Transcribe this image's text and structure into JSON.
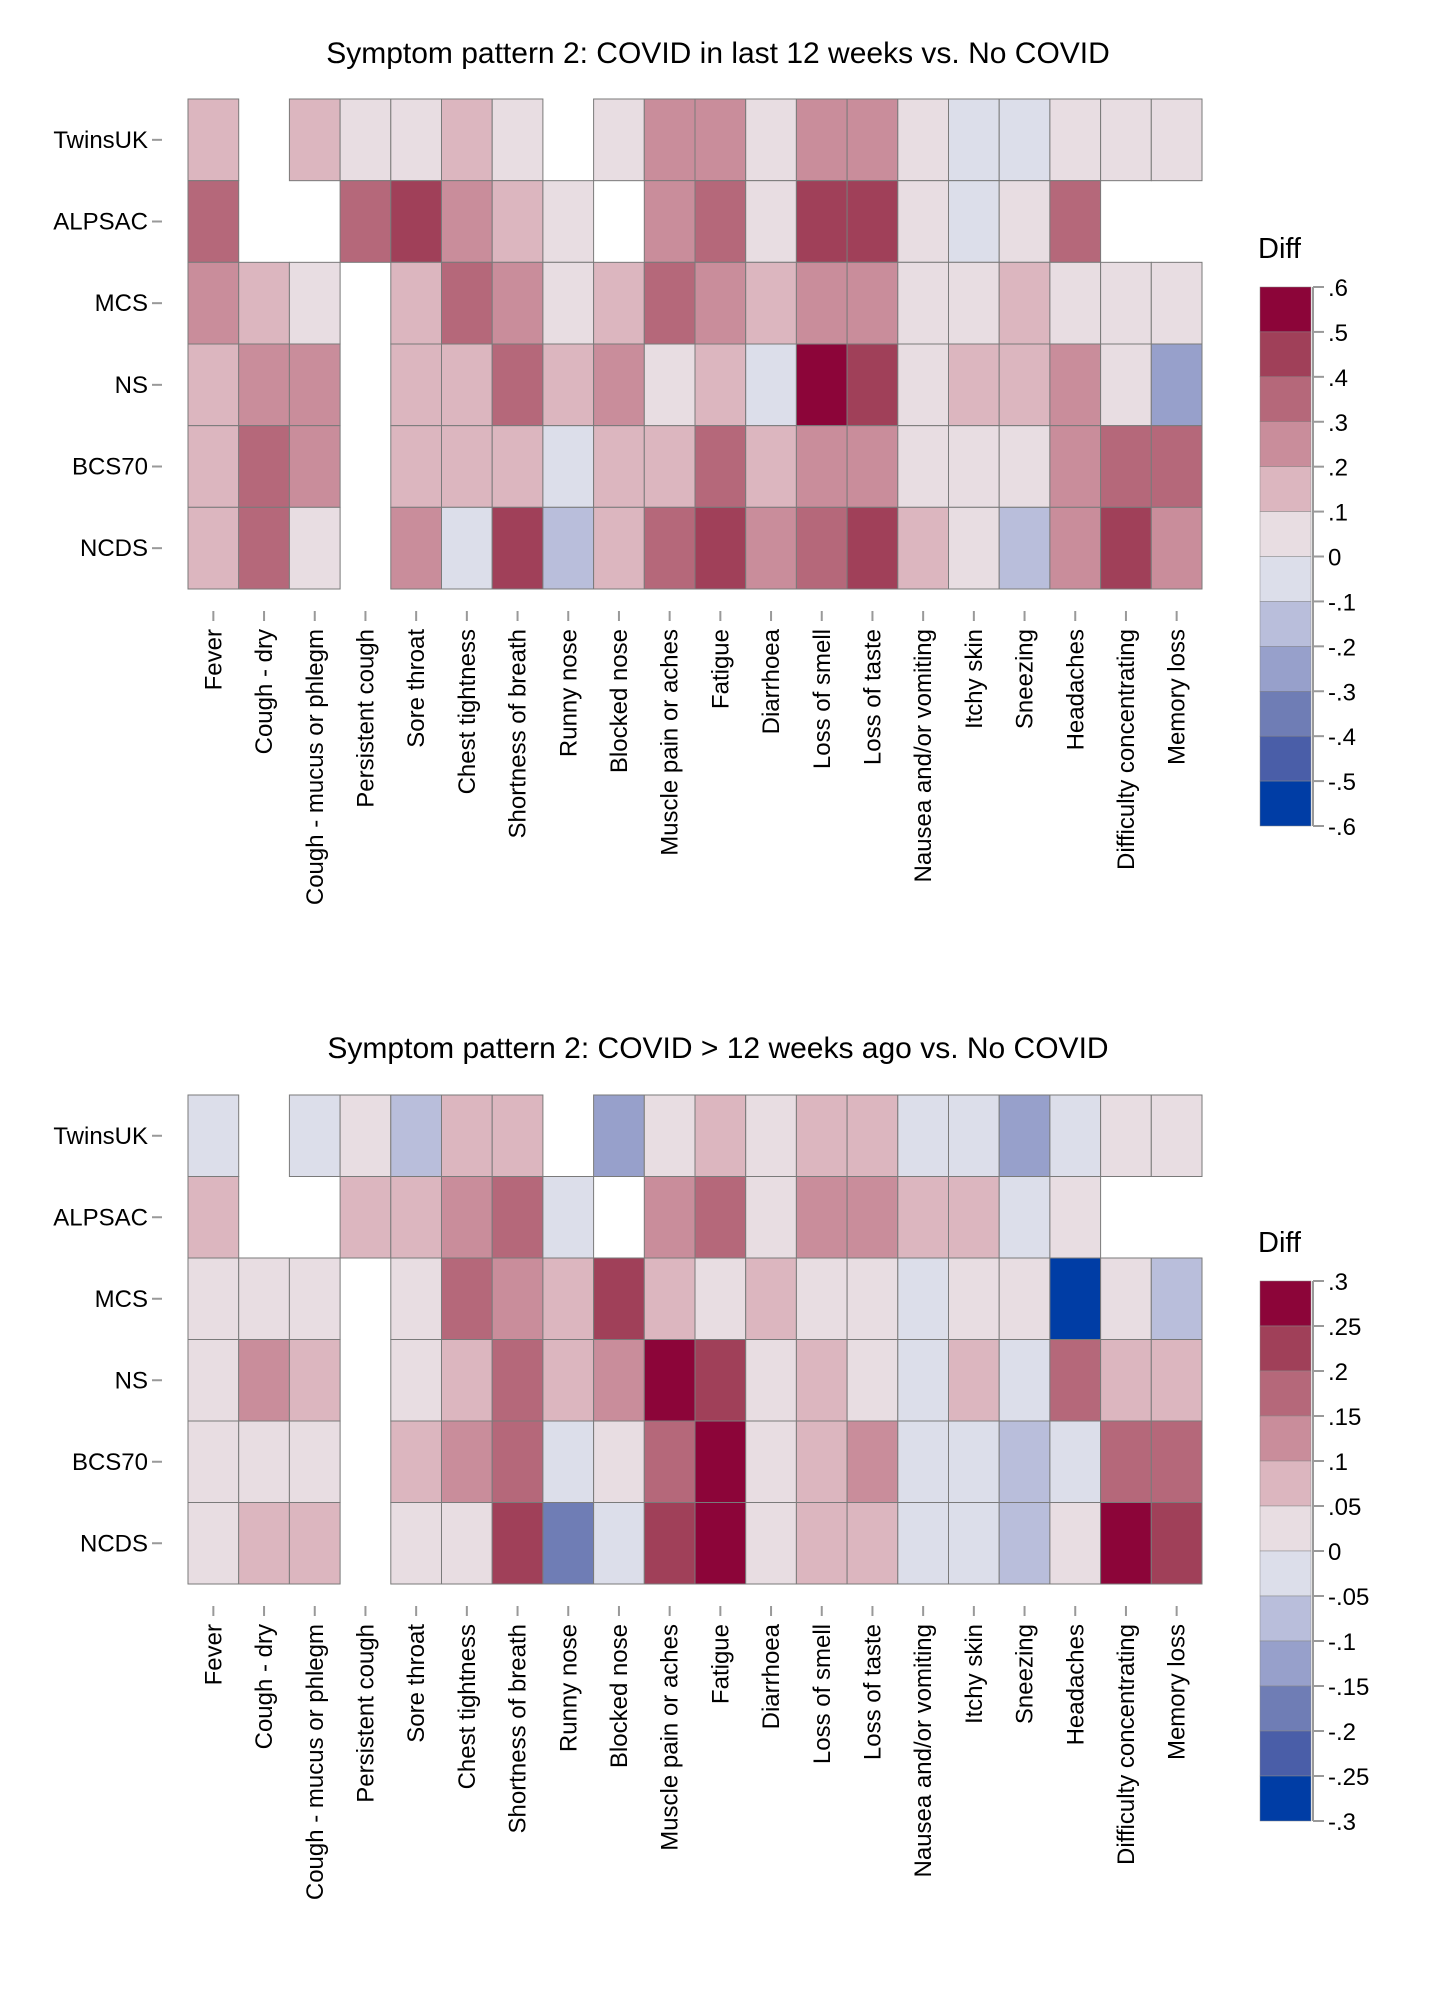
{
  "colors": [
    "#003DA5",
    "#4A5EA8",
    "#6F7DB5",
    "#97A0CB",
    "#B9BEDB",
    "#DCDEEA",
    "#E8DDE2",
    "#DCB6BF",
    "#C98D9B",
    "#B5687A",
    "#A04059",
    "#8C0539"
  ],
  "chart_data": [
    {
      "type": "heatmap",
      "title": "Symptom pattern 2: COVID in last 12 weeks vs. No COVID",
      "legend_title": "Diff",
      "legend_placement": "right",
      "scale_range": [
        -0.6,
        0.6
      ],
      "scale_step": 0.1,
      "legend_ticks": [
        ".6",
        ".5",
        ".4",
        ".3",
        ".2",
        ".1",
        "0",
        "-.1",
        "-.2",
        "-.3",
        "-.4",
        "-.5",
        "-.6"
      ],
      "rows": [
        "TwinsUK",
        "ALPSAC",
        "MCS",
        "NS",
        "BCS70",
        "NCDS"
      ],
      "columns": [
        "Fever",
        "Cough - dry",
        "Cough - mucus or phlegm",
        "Persistent cough",
        "Sore throat",
        "Chest tightness",
        "Shortness of breath",
        "Runny nose",
        "Blocked nose",
        "Muscle pain or aches",
        "Fatigue",
        "Diarrhoea",
        "Loss of smell",
        "Loss of taste",
        "Nausea and/or vomiting",
        "Itchy skin",
        "Sneezing",
        "Headaches",
        "Difficulty concentrating",
        "Memory loss"
      ],
      "values": [
        [
          0.15,
          null,
          0.15,
          0.05,
          0.05,
          0.15,
          0.05,
          null,
          0.05,
          0.25,
          0.25,
          0.05,
          0.25,
          0.25,
          0.05,
          -0.05,
          -0.05,
          0.05,
          0.05,
          0.05
        ],
        [
          0.35,
          null,
          null,
          0.35,
          0.45,
          0.25,
          0.15,
          0.05,
          null,
          0.25,
          0.35,
          0.05,
          0.45,
          0.45,
          0.05,
          -0.05,
          0.05,
          0.35,
          null,
          null
        ],
        [
          0.25,
          0.15,
          0.05,
          null,
          0.15,
          0.35,
          0.25,
          0.05,
          0.15,
          0.35,
          0.25,
          0.15,
          0.25,
          0.25,
          0.05,
          0.05,
          0.15,
          0.05,
          0.05,
          0.05
        ],
        [
          0.15,
          0.25,
          0.25,
          null,
          0.15,
          0.15,
          0.35,
          0.15,
          0.25,
          0.05,
          0.15,
          -0.05,
          0.55,
          0.45,
          0.05,
          0.15,
          0.15,
          0.25,
          0.05,
          -0.25
        ],
        [
          0.15,
          0.35,
          0.25,
          null,
          0.15,
          0.15,
          0.15,
          -0.05,
          0.15,
          0.15,
          0.35,
          0.15,
          0.25,
          0.25,
          0.05,
          0.05,
          0.05,
          0.25,
          0.35,
          0.35
        ],
        [
          0.15,
          0.35,
          0.05,
          null,
          0.25,
          -0.05,
          0.45,
          -0.15,
          0.15,
          0.35,
          0.45,
          0.25,
          0.35,
          0.45,
          0.15,
          0.05,
          -0.15,
          0.25,
          0.45,
          0.25
        ]
      ]
    },
    {
      "type": "heatmap",
      "title": "Symptom pattern 2: COVID > 12 weeks ago vs. No COVID",
      "legend_title": "Diff",
      "legend_placement": "right",
      "scale_range": [
        -0.3,
        0.3
      ],
      "scale_step": 0.05,
      "legend_ticks": [
        ".3",
        ".25",
        ".2",
        ".15",
        ".1",
        ".05",
        "0",
        "-.05",
        "-.1",
        "-.15",
        "-.2",
        "-.25",
        "-.3"
      ],
      "rows": [
        "TwinsUK",
        "ALPSAC",
        "MCS",
        "NS",
        "BCS70",
        "NCDS"
      ],
      "columns": [
        "Fever",
        "Cough - dry",
        "Cough - mucus or phlegm",
        "Persistent cough",
        "Sore throat",
        "Chest tightness",
        "Shortness of breath",
        "Runny nose",
        "Blocked nose",
        "Muscle pain or aches",
        "Fatigue",
        "Diarrhoea",
        "Loss of smell",
        "Loss of taste",
        "Nausea and/or vomiting",
        "Itchy skin",
        "Sneezing",
        "Headaches",
        "Difficulty concentrating",
        "Memory loss"
      ],
      "values": [
        [
          -0.025,
          null,
          -0.025,
          0.025,
          -0.075,
          0.075,
          0.075,
          null,
          -0.125,
          0.025,
          0.075,
          0.025,
          0.075,
          0.075,
          -0.025,
          -0.025,
          -0.125,
          -0.025,
          0.025,
          0.025
        ],
        [
          0.075,
          null,
          null,
          0.075,
          0.075,
          0.125,
          0.175,
          -0.025,
          null,
          0.125,
          0.175,
          0.025,
          0.125,
          0.125,
          0.075,
          0.075,
          -0.025,
          0.025,
          null,
          null
        ],
        [
          0.025,
          0.025,
          0.025,
          null,
          0.025,
          0.175,
          0.125,
          0.075,
          0.225,
          0.075,
          0.025,
          0.075,
          0.025,
          0.025,
          -0.025,
          0.025,
          0.025,
          -0.275,
          0.025,
          -0.075
        ],
        [
          0.025,
          0.125,
          0.075,
          null,
          0.025,
          0.075,
          0.175,
          0.075,
          0.125,
          0.275,
          0.225,
          0.025,
          0.075,
          0.025,
          -0.025,
          0.075,
          -0.025,
          0.175,
          0.075,
          0.075
        ],
        [
          0.025,
          0.025,
          0.025,
          null,
          0.075,
          0.125,
          0.175,
          -0.025,
          0.025,
          0.175,
          0.275,
          0.025,
          0.075,
          0.125,
          -0.025,
          -0.025,
          -0.075,
          -0.025,
          0.175,
          0.175
        ],
        [
          0.025,
          0.075,
          0.075,
          null,
          0.025,
          0.025,
          0.225,
          -0.175,
          -0.025,
          0.225,
          0.275,
          0.025,
          0.075,
          0.075,
          -0.025,
          -0.025,
          -0.075,
          0.025,
          0.275,
          0.225
        ]
      ]
    }
  ]
}
